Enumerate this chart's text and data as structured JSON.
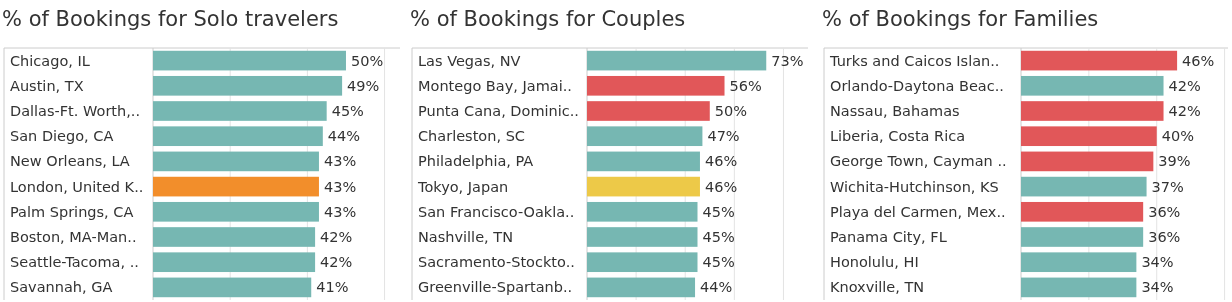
{
  "chart_data": [
    {
      "type": "bar",
      "orientation": "horizontal",
      "title": "% of Bookings for Solo travelers",
      "categories": [
        "Chicago, IL",
        "Austin, TX",
        "Dallas-Ft. Worth,..",
        "San Diego, CA",
        "New Orleans, LA",
        "London, United K..",
        "Palm Springs, CA",
        "Boston, MA-Man..",
        "Seattle-Tacoma, ..",
        "Savannah, GA"
      ],
      "values": [
        50,
        49,
        45,
        44,
        43,
        43,
        43,
        42,
        42,
        41
      ],
      "value_labels": [
        "50%",
        "49%",
        "45%",
        "44%",
        "43%",
        "43%",
        "43%",
        "42%",
        "42%",
        "41%"
      ],
      "colors": [
        "#76b7b2",
        "#76b7b2",
        "#76b7b2",
        "#76b7b2",
        "#76b7b2",
        "#f28e2b",
        "#76b7b2",
        "#76b7b2",
        "#76b7b2",
        "#76b7b2"
      ],
      "xlim": [
        0,
        64
      ],
      "xticks": [
        {
          "value": 0,
          "label": null
        },
        {
          "value": 20,
          "label": null
        },
        {
          "value": 40,
          "label": null
        },
        {
          "value": 60,
          "label": null
        }
      ],
      "grid": "x",
      "tick_labels": "y"
    },
    {
      "type": "bar",
      "orientation": "horizontal",
      "title": "% of Bookings for Couples",
      "categories": [
        "Las Vegas, NV",
        "Montego Bay, Jamai..",
        "Punta Cana, Dominic..",
        "Charleston, SC",
        "Philadelphia, PA",
        "Tokyo, Japan",
        "San Francisco-Oakla..",
        "Nashville, TN",
        "Sacramento-Stockto..",
        "Greenville-Spartanb.."
      ],
      "values": [
        73,
        56,
        50,
        47,
        46,
        46,
        45,
        45,
        45,
        44
      ],
      "value_labels": [
        "73%",
        "56%",
        "50%",
        "47%",
        "46%",
        "46%",
        "45%",
        "45%",
        "45%",
        "44%"
      ],
      "colors": [
        "#76b7b2",
        "#e15759",
        "#e15759",
        "#76b7b2",
        "#76b7b2",
        "#edc948",
        "#76b7b2",
        "#76b7b2",
        "#76b7b2",
        "#76b7b2"
      ],
      "xlim": [
        0,
        90
      ],
      "xticks": [
        {
          "value": 0,
          "label": null
        },
        {
          "value": 20,
          "label": null
        },
        {
          "value": 40,
          "label": null
        },
        {
          "value": 60,
          "label": null
        },
        {
          "value": 80,
          "label": null
        }
      ],
      "grid": "x",
      "tick_labels": "y"
    },
    {
      "type": "bar",
      "orientation": "horizontal",
      "title": "% of Bookings for Families",
      "categories": [
        "Turks and Caicos Islan..",
        "Orlando-Daytona Beac..",
        "Nassau, Bahamas",
        "Liberia, Costa Rica",
        "George Town, Cayman ..",
        "Wichita-Hutchinson, KS",
        "Playa del Carmen, Mex..",
        "Panama City, FL",
        "Honolulu, HI",
        "Knoxville, TN"
      ],
      "values": [
        46,
        42,
        42,
        40,
        39,
        37,
        36,
        36,
        34,
        34
      ],
      "value_labels": [
        "46%",
        "42%",
        "42%",
        "40%",
        "39%",
        "37%",
        "36%",
        "36%",
        "34%",
        "34%"
      ],
      "colors": [
        "#e15759",
        "#76b7b2",
        "#e15759",
        "#e15759",
        "#e15759",
        "#76b7b2",
        "#e15759",
        "#76b7b2",
        "#76b7b2",
        "#76b7b2"
      ],
      "xlim": [
        0,
        61
      ],
      "xticks": [
        {
          "value": 0,
          "label": null
        },
        {
          "value": 20,
          "label": null
        },
        {
          "value": 40,
          "label": null
        },
        {
          "value": 60,
          "label": null
        }
      ],
      "grid": "x",
      "tick_labels": "y"
    }
  ]
}
